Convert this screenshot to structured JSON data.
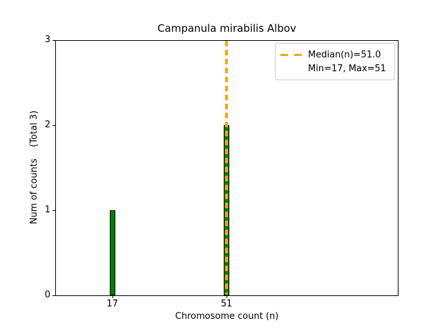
{
  "chart_data": {
    "type": "bar",
    "title": "Campanula mirabilis Albov",
    "xlabel": "Chromosome count (n)",
    "ylabel": "Num of counts    (Total 3)",
    "categories": [
      17,
      51
    ],
    "values": [
      1,
      2
    ],
    "total_counts": 3,
    "min": 17,
    "max": 51,
    "xlim": [
      0,
      102
    ],
    "ylim": [
      0,
      3
    ],
    "xticks": [
      "17",
      "51"
    ],
    "yticks": [
      "0",
      "1",
      "2",
      "3"
    ],
    "grid": false,
    "bar_color": "#008000",
    "bar_edge_color": "#000000",
    "median": {
      "value": 51.0,
      "color": "#FFA500",
      "line_style": "dashed"
    },
    "legend": {
      "position": "upper right",
      "entries": [
        {
          "label": "Median(n)=51.0",
          "marker": "orange-dashed-line"
        },
        {
          "label": "Min=17, Max=51",
          "marker": "none"
        }
      ]
    }
  }
}
